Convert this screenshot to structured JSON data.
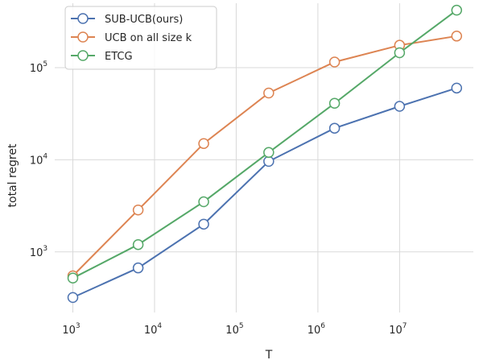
{
  "chart_data": {
    "type": "line",
    "xlabel": "T",
    "ylabel": "total regret",
    "x_scale": "log",
    "y_scale": "log",
    "xlim": [
      600,
      80000000
    ],
    "ylim": [
      220,
      500000
    ],
    "grid": true,
    "legend_position": "top-left",
    "x_ticks": [
      {
        "base": "10",
        "exp": "3",
        "value": 1000
      },
      {
        "base": "10",
        "exp": "4",
        "value": 10000
      },
      {
        "base": "10",
        "exp": "5",
        "value": 100000
      },
      {
        "base": "10",
        "exp": "6",
        "value": 1000000
      },
      {
        "base": "10",
        "exp": "7",
        "value": 10000000
      }
    ],
    "y_ticks": [
      {
        "base": "10",
        "exp": "3",
        "value": 1000
      },
      {
        "base": "10",
        "exp": "4",
        "value": 10000
      },
      {
        "base": "10",
        "exp": "5",
        "value": 100000
      }
    ],
    "x": [
      1000,
      6300,
      40000,
      250000,
      1600000,
      10000000,
      50000000
    ],
    "series": [
      {
        "name": "SUB-UCB(ours)",
        "color": "#4c72b0",
        "values": [
          320,
          670,
          2000,
          9600,
          22000,
          38000,
          60000
        ]
      },
      {
        "name": "UCB on all size k",
        "color": "#dd8452",
        "values": [
          550,
          2850,
          15000,
          53000,
          115000,
          175000,
          220000
        ]
      },
      {
        "name": "ETCG",
        "color": "#55a868",
        "values": [
          520,
          1200,
          3500,
          12000,
          41000,
          145000,
          420000
        ]
      }
    ]
  }
}
